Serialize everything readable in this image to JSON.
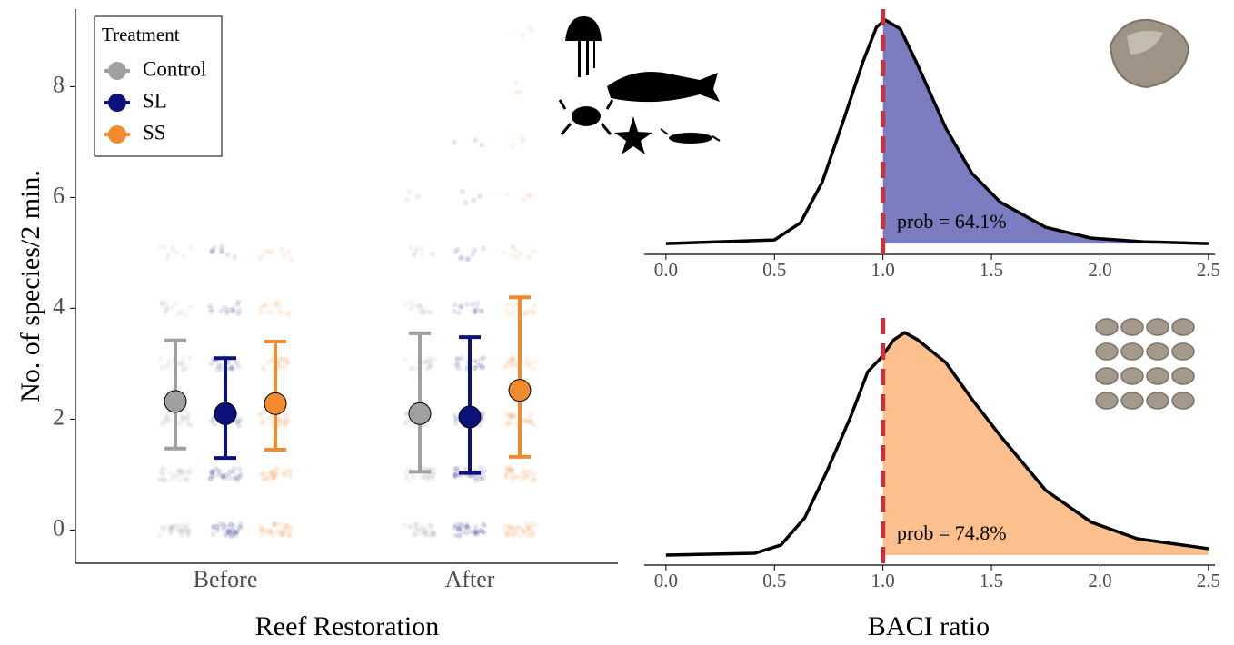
{
  "chart_data": [
    {
      "type": "errorbar",
      "x_label": "Reef Restoration",
      "y_label": "No. of species/2 min.",
      "categories": [
        "Before",
        "After"
      ],
      "legend_title": "Treatment",
      "legend": "top-left",
      "ylim": [
        -0.6,
        9.4
      ],
      "yticks": [
        0,
        2,
        4,
        6,
        8
      ],
      "series": [
        {
          "name": "Control",
          "color": "#a0a0a0",
          "values": [
            2.32,
            2.1
          ],
          "lower": [
            1.47,
            1.05
          ],
          "upper": [
            3.42,
            3.55
          ],
          "levels": [
            [
              0,
              1,
              2,
              3,
              4,
              5
            ],
            [
              0,
              1,
              2,
              3,
              4,
              5,
              6
            ]
          ]
        },
        {
          "name": "SL",
          "color": "#0d127a",
          "values": [
            2.1,
            2.04
          ],
          "lower": [
            1.3,
            1.03
          ],
          "upper": [
            3.1,
            3.48
          ],
          "levels": [
            [
              0,
              1,
              2,
              3,
              4,
              5
            ],
            [
              0,
              1,
              2,
              3,
              4,
              5,
              6,
              7
            ]
          ]
        },
        {
          "name": "SS",
          "color": "#f28a30",
          "values": [
            2.28,
            2.52
          ],
          "lower": [
            1.45,
            1.32
          ],
          "upper": [
            3.4,
            4.2
          ],
          "levels": [
            [
              0,
              1,
              2,
              3,
              4,
              5
            ],
            [
              0,
              1,
              2,
              3,
              4,
              5,
              6,
              7,
              8,
              9
            ]
          ]
        }
      ]
    },
    {
      "type": "density",
      "x": [
        0,
        0.5,
        0.62,
        0.72,
        0.82,
        0.91,
        0.97,
        1.01,
        1.08,
        1.16,
        1.29,
        1.41,
        1.54,
        1.75,
        1.96,
        2.2,
        2.5
      ],
      "values": [
        0,
        0.04,
        0.23,
        0.68,
        1.38,
        2.03,
        2.4,
        2.48,
        2.38,
        1.98,
        1.28,
        0.78,
        0.46,
        0.18,
        0.06,
        0.02,
        0
      ],
      "color": "#7b7bc0",
      "vline": 1,
      "vline_color": "#c8323a",
      "annotation": "prob = 64.1%",
      "xlim": [
        -0.1,
        2.53
      ],
      "ylim": [
        -0.12,
        2.6
      ],
      "xticks": [
        {
          "value": 0,
          "label": "0.0"
        },
        0.5,
        {
          "value": 1,
          "label": "1.0"
        },
        1.5,
        {
          "value": 2,
          "label": "2.0"
        },
        2.5
      ]
    },
    {
      "type": "density",
      "x_label": "BACI ratio",
      "x": [
        0,
        0.41,
        0.53,
        0.64,
        0.74,
        0.85,
        0.93,
        0.99,
        1.05,
        1.1,
        1.16,
        1.29,
        1.41,
        1.54,
        1.75,
        1.96,
        2.17,
        2.5
      ],
      "values": [
        0,
        0.02,
        0.11,
        0.41,
        0.91,
        1.51,
        2.01,
        2.16,
        2.36,
        2.44,
        2.36,
        2.11,
        1.71,
        1.31,
        0.71,
        0.36,
        0.18,
        0.07
      ],
      "color": "#fcbf8e",
      "vline": 1,
      "vline_color": "#c8323a",
      "annotation": "prob = 74.8%",
      "xlim": [
        -0.1,
        2.53
      ],
      "ylim": [
        -0.11,
        2.6
      ],
      "xticks": [
        {
          "value": 0,
          "label": "0.0"
        },
        0.5,
        {
          "value": 1,
          "label": "1.0"
        },
        1.5,
        {
          "value": 2,
          "label": "2.0"
        },
        2.5
      ]
    }
  ]
}
